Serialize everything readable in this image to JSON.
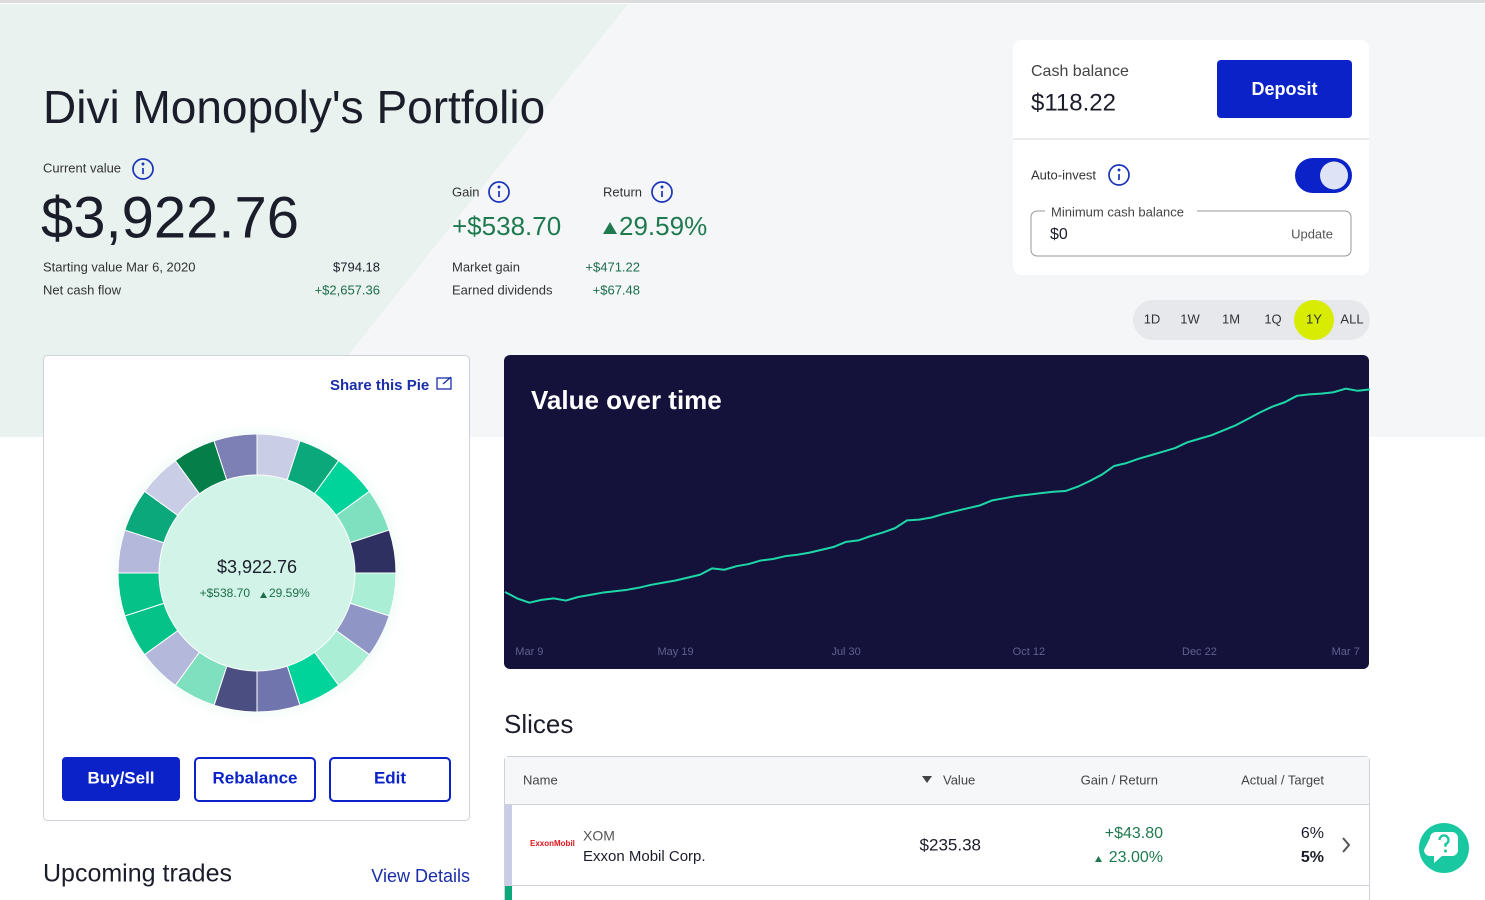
{
  "header": {
    "title": "Divi Monopoly's Portfolio",
    "current_value_label": "Current value",
    "current_value": "$3,922.76",
    "starting_value_label": "Starting value Mar 6, 2020",
    "starting_value": "$794.18",
    "net_cash_flow_label": "Net cash flow",
    "net_cash_flow": "+$2,657.36",
    "gain_label": "Gain",
    "gain": "+$538.70",
    "return_label": "Return",
    "return": "29.59%",
    "market_gain_label": "Market gain",
    "market_gain": "+$471.22",
    "earned_dividends_label": "Earned dividends",
    "earned_dividends": "+$67.48"
  },
  "cash": {
    "label": "Cash balance",
    "value": "$118.22",
    "deposit": "Deposit",
    "auto_invest": "Auto-invest",
    "min_label": "Minimum cash balance",
    "min_value": "$0",
    "update": "Update"
  },
  "ranges": [
    "1D",
    "1W",
    "1M",
    "1Q",
    "1Y",
    "ALL"
  ],
  "selected_range": 4,
  "pie": {
    "share": "Share this Pie",
    "buttons": [
      "Buy/Sell",
      "Rebalance",
      "Edit"
    ]
  },
  "upcoming": {
    "title": "Upcoming trades",
    "link": "View Details"
  },
  "slices": {
    "title": "Slices",
    "columns": [
      "Name",
      "Value",
      "Gain / Return",
      "Actual / Target"
    ],
    "rows": [
      {
        "logo": "ExxonMobil",
        "ticker": "XOM",
        "name": "Exxon Mobil Corp.",
        "value": "$235.38",
        "gain": "+$43.80",
        "return": "23.00%",
        "actual": "6%",
        "target": "5%"
      }
    ]
  },
  "chart_data": [
    {
      "type": "donut",
      "values": [
        5,
        5,
        5,
        5,
        5,
        5,
        5,
        5,
        5,
        5,
        5,
        5,
        5,
        5,
        5,
        5,
        5,
        5,
        5,
        5
      ],
      "colors": [
        "#c9cde6",
        "#0aa87a",
        "#00d49a",
        "#7fe0c0",
        "#2d3060",
        "#aaeed6",
        "#8f96c6",
        "#aaeed6",
        "#00d49a",
        "#7076ad",
        "#4a4e80",
        "#7fe0c0",
        "#b4b8da",
        "#05c288",
        "#05c288",
        "#b4b8da",
        "#0aa87a",
        "#c9cde6",
        "#067e4a",
        "#7c80b4"
      ]
    },
    {
      "type": "line",
      "title": "Value over time",
      "color": "#1ed7a8",
      "ylim": [
        0,
        4400
      ],
      "categories": [
        null,
        null,
        "Mar 9",
        null,
        null,
        null,
        null,
        null,
        null,
        null,
        null,
        null,
        null,
        null,
        "May 19",
        null,
        null,
        null,
        null,
        null,
        null,
        null,
        null,
        null,
        null,
        null,
        null,
        null,
        "Jul 30",
        null,
        null,
        null,
        null,
        null,
        null,
        null,
        null,
        null,
        null,
        null,
        null,
        null,
        null,
        "Oct 12",
        null,
        null,
        null,
        null,
        null,
        null,
        null,
        null,
        null,
        null,
        null,
        null,
        null,
        "Dec 22",
        null,
        null,
        null,
        null,
        null,
        null,
        null,
        null,
        null,
        null,
        null,
        "Mar 7",
        null,
        null
      ],
      "values": [
        1090,
        1000,
        940,
        980,
        1000,
        970,
        1020,
        1050,
        1080,
        1100,
        1120,
        1150,
        1190,
        1220,
        1250,
        1290,
        1330,
        1420,
        1400,
        1450,
        1480,
        1530,
        1550,
        1590,
        1610,
        1640,
        1680,
        1720,
        1790,
        1810,
        1870,
        1920,
        1980,
        2090,
        2100,
        2130,
        2180,
        2220,
        2260,
        2300,
        2370,
        2400,
        2430,
        2450,
        2470,
        2490,
        2500,
        2560,
        2640,
        2730,
        2850,
        2890,
        2950,
        3000,
        3050,
        3100,
        3180,
        3230,
        3280,
        3350,
        3420,
        3510,
        3600,
        3680,
        3740,
        3830,
        3850,
        3860,
        3880,
        3930,
        3900,
        3920
      ]
    }
  ]
}
